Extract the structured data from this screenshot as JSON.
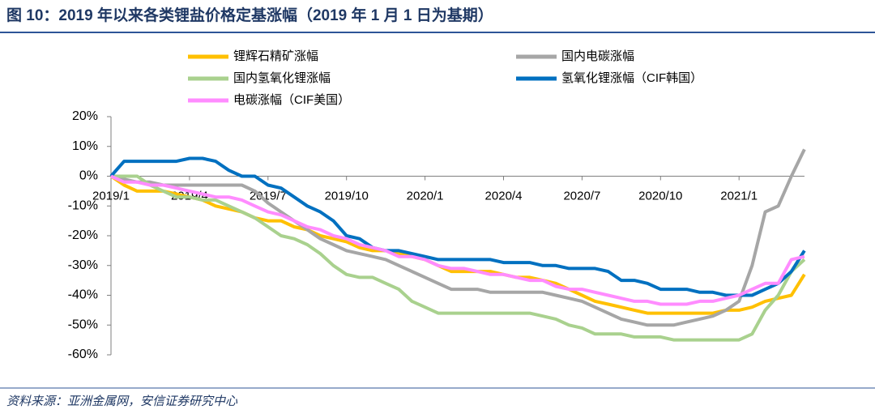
{
  "chart_data": {
    "type": "line",
    "title": "图 10：2019 年以来各类锂盐价格定基涨幅（2019 年 1 月 1 日为基期）",
    "source": "资料来源：亚洲金属网，安信证券研究中心",
    "categories": [
      "2019/1",
      null,
      null,
      null,
      null,
      null,
      "2019/4",
      null,
      null,
      null,
      null,
      null,
      "2019/7",
      null,
      null,
      null,
      null,
      null,
      "2019/10",
      null,
      null,
      null,
      null,
      null,
      "2020/1",
      null,
      null,
      null,
      null,
      null,
      "2020/4",
      null,
      null,
      null,
      null,
      null,
      "2020/7",
      null,
      null,
      null,
      null,
      null,
      "2020/10",
      null,
      null,
      null,
      null,
      null,
      "2021/1",
      null,
      null,
      null,
      null,
      null
    ],
    "ylim": [
      -60,
      20
    ],
    "yticks": [
      {
        "value": 20,
        "label": "20%"
      },
      {
        "value": 10,
        "label": "10%"
      },
      {
        "value": 0,
        "label": "0%"
      },
      {
        "value": -10,
        "label": "-10%"
      },
      {
        "value": -20,
        "label": "-20%"
      },
      {
        "value": -30,
        "label": "-30%"
      },
      {
        "value": -40,
        "label": "-40%"
      },
      {
        "value": -50,
        "label": "-50%"
      },
      {
        "value": -60,
        "label": "-60%"
      }
    ],
    "grid": false,
    "series": [
      {
        "name": "锂辉石精矿涨幅",
        "color": "#FFC000",
        "values": [
          0,
          -3,
          -5,
          -5,
          -5,
          -6,
          -7,
          -8,
          -10,
          -11,
          -12,
          -14,
          -15,
          -15,
          -17,
          -18,
          -20,
          -21,
          -22,
          -24,
          -25,
          -25,
          -26,
          -27,
          -28,
          -30,
          -32,
          -32,
          -32,
          -32,
          -33,
          -34,
          -34,
          -35,
          -36,
          -38,
          -40,
          -42,
          -43,
          -44,
          -45,
          -46,
          -46,
          -46,
          -46,
          -46,
          -46,
          -45,
          -45,
          -44,
          -42,
          -41,
          -40,
          -33
        ]
      },
      {
        "name": "国内电碳涨幅",
        "color": "#A6A6A6",
        "values": [
          0,
          -1,
          -2,
          -2,
          -3,
          -3,
          -3,
          -3,
          -3,
          -3,
          -3,
          -5,
          -9,
          -12,
          -15,
          -18,
          -21,
          -23,
          -25,
          -26,
          -27,
          -28,
          -30,
          -32,
          -34,
          -36,
          -38,
          -38,
          -38,
          -39,
          -39,
          -39,
          -39,
          -39,
          -40,
          -41,
          -42,
          -44,
          -46,
          -48,
          -49,
          -50,
          -50,
          -50,
          -49,
          -48,
          -47,
          -45,
          -42,
          -30,
          -12,
          -10,
          0,
          9
        ]
      },
      {
        "name": "国内氢氧化锂涨幅",
        "color": "#A9D18E",
        "values": [
          0,
          0,
          0,
          -3,
          -5,
          -7,
          -7,
          -8,
          -8,
          -10,
          -12,
          -14,
          -17,
          -20,
          -21,
          -23,
          -26,
          -30,
          -33,
          -34,
          -34,
          -36,
          -38,
          -42,
          -44,
          -46,
          -46,
          -46,
          -46,
          -46,
          -46,
          -46,
          -46,
          -47,
          -48,
          -50,
          -51,
          -53,
          -53,
          -53,
          -54,
          -54,
          -54,
          -55,
          -55,
          -55,
          -55,
          -55,
          -55,
          -53,
          -45,
          -40,
          -32,
          -28
        ]
      },
      {
        "name": "氢氧化锂涨幅（CIF韩国）",
        "color": "#0070C0",
        "values": [
          0,
          5,
          5,
          5,
          5,
          5,
          6,
          6,
          5,
          2,
          0,
          0,
          -3,
          -4,
          -7,
          -10,
          -12,
          -15,
          -20,
          -21,
          -24,
          -25,
          -25,
          -26,
          -27,
          -28,
          -28,
          -28,
          -28,
          -28,
          -29,
          -29,
          -29,
          -30,
          -30,
          -31,
          -31,
          -31,
          -32,
          -35,
          -35,
          -36,
          -38,
          -38,
          -38,
          -39,
          -39,
          -40,
          -40,
          -40,
          -38,
          -36,
          -32,
          -25
        ]
      },
      {
        "name": "电碳涨幅（CIF美国）",
        "color": "#FF8CFF",
        "values": [
          0,
          -2,
          -2,
          -3,
          -3,
          -4,
          -5,
          -6,
          -7,
          -7,
          -8,
          -10,
          -12,
          -13,
          -15,
          -17,
          -18,
          -20,
          -21,
          -23,
          -24,
          -25,
          -27,
          -27,
          -28,
          -30,
          -31,
          -31,
          -32,
          -33,
          -33,
          -34,
          -35,
          -35,
          -37,
          -38,
          -38,
          -39,
          -40,
          -41,
          -42,
          -42,
          -43,
          -43,
          -43,
          -42,
          -42,
          -41,
          -40,
          -38,
          -36,
          -36,
          -28,
          -27
        ]
      }
    ]
  }
}
